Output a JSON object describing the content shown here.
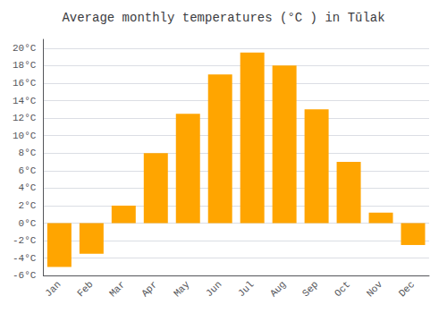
{
  "chart_data": {
    "type": "bar",
    "title": "Average monthly temperatures (°C ) in Tūlak",
    "categories": [
      "Jan",
      "Feb",
      "Mar",
      "Apr",
      "May",
      "Jun",
      "Jul",
      "Aug",
      "Sep",
      "Oct",
      "Nov",
      "Dec"
    ],
    "values": [
      -5.0,
      -3.5,
      2.0,
      8.0,
      12.5,
      17.0,
      19.5,
      18.0,
      13.0,
      7.0,
      1.2,
      -2.5
    ],
    "color": "#FFA500",
    "ylim": [
      -6,
      21
    ],
    "yticks": [
      {
        "value": -6,
        "label": "-6°C"
      },
      {
        "value": -4,
        "label": "-4°C"
      },
      {
        "value": -2,
        "label": "-2°C"
      },
      {
        "value": 0,
        "label": "0°C"
      },
      {
        "value": 2,
        "label": "2°C"
      },
      {
        "value": 4,
        "label": "4°C"
      },
      {
        "value": 6,
        "label": "6°C"
      },
      {
        "value": 8,
        "label": "8°C"
      },
      {
        "value": 10,
        "label": "10°C"
      },
      {
        "value": 12,
        "label": "12°C"
      },
      {
        "value": 14,
        "label": "14°C"
      },
      {
        "value": 16,
        "label": "16°C"
      },
      {
        "value": 18,
        "label": "18°C"
      },
      {
        "value": 20,
        "label": "20°C"
      }
    ],
    "grid": true
  }
}
